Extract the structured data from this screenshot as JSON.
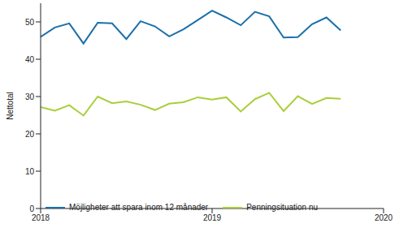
{
  "chart_data": {
    "type": "line",
    "y_label": "Nettotal",
    "x": [
      2018.0,
      2018.083,
      2018.167,
      2018.25,
      2018.333,
      2018.417,
      2018.5,
      2018.583,
      2018.667,
      2018.75,
      2018.833,
      2018.917,
      2019.0,
      2019.083,
      2019.167,
      2019.25,
      2019.333,
      2019.417,
      2019.5,
      2019.583,
      2019.667,
      2019.75
    ],
    "series": [
      {
        "name": "Möjligheter att spara inom 12 månader",
        "color": "#1a6fab",
        "values": [
          46.0,
          48.5,
          49.6,
          44.2,
          49.8,
          49.6,
          45.4,
          50.2,
          48.8,
          46.1,
          48.0,
          50.5,
          53.0,
          51.2,
          49.1,
          52.7,
          51.5,
          45.8,
          45.9,
          49.4,
          51.2,
          47.7
        ]
      },
      {
        "name": "Penningsituation nu",
        "color": "#a9cf3b",
        "values": [
          27.2,
          26.2,
          27.7,
          24.9,
          30.0,
          28.2,
          28.7,
          27.8,
          26.4,
          28.1,
          28.5,
          29.8,
          29.2,
          29.8,
          26.0,
          29.3,
          31.0,
          26.1,
          30.1,
          28.0,
          29.6,
          29.4
        ]
      }
    ],
    "xlim": [
      2018,
      2020
    ],
    "xticks": [
      2018,
      2019,
      2020
    ],
    "ylim": [
      0,
      55
    ],
    "yticks": [
      0,
      10,
      20,
      30,
      40,
      50
    ],
    "grid": false,
    "legend": "bottom"
  }
}
